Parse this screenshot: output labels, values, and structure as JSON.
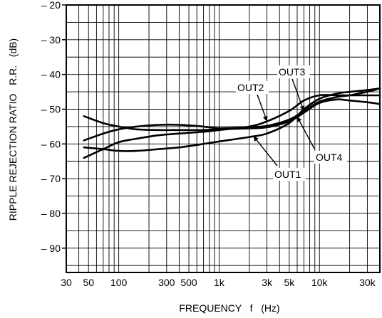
{
  "chart_data": {
    "type": "line",
    "title": "",
    "xlabel": "FREQUENCY   f   (Hz)",
    "ylabel": "RIPPLE REJECTION RATIO   R.R.   (dB)",
    "xscale": "log",
    "xlim": [
      30,
      40000
    ],
    "ylim": [
      -97,
      -20
    ],
    "grid": true,
    "legend": "inline labels",
    "x_ticks": [
      {
        "value": 30,
        "label": "30"
      },
      {
        "value": 50,
        "label": "50"
      },
      {
        "value": 100,
        "label": "100"
      },
      {
        "value": 300,
        "label": "300"
      },
      {
        "value": 500,
        "label": "500"
      },
      {
        "value": 1000,
        "label": "1k"
      },
      {
        "value": 3000,
        "label": "3k"
      },
      {
        "value": 5000,
        "label": "5k"
      },
      {
        "value": 10000,
        "label": "10k"
      },
      {
        "value": 30000,
        "label": "30k"
      }
    ],
    "y_ticks": [
      {
        "value": -20,
        "label": "– 20"
      },
      {
        "value": -30,
        "label": "– 30"
      },
      {
        "value": -40,
        "label": "– 40"
      },
      {
        "value": -50,
        "label": "– 50"
      },
      {
        "value": -60,
        "label": "– 60"
      },
      {
        "value": -70,
        "label": "– 70"
      },
      {
        "value": -80,
        "label": "– 80"
      },
      {
        "value": -90,
        "label": "– 90"
      }
    ],
    "series": [
      {
        "name": "OUT1",
        "x": [
          45,
          70,
          100,
          150,
          250,
          400,
          700,
          1000,
          2000,
          3000,
          5000,
          7000,
          10000,
          15000,
          20000,
          30000,
          40000
        ],
        "y": [
          -61,
          -61.5,
          -62,
          -62,
          -61.5,
          -61,
          -60,
          -59.3,
          -58,
          -57,
          -54,
          -50,
          -47,
          -45.5,
          -45,
          -44.5,
          -44
        ]
      },
      {
        "name": "OUT2",
        "x": [
          45,
          70,
          100,
          150,
          250,
          400,
          700,
          1000,
          2000,
          3000,
          5000,
          7000,
          10000,
          15000,
          20000,
          30000,
          40000
        ],
        "y": [
          -64,
          -61.5,
          -59.5,
          -58.5,
          -57.5,
          -57,
          -56.5,
          -56,
          -55,
          -53.5,
          -50.5,
          -47.5,
          -46,
          -46,
          -46,
          -46,
          -46
        ]
      },
      {
        "name": "OUT3",
        "x": [
          45,
          70,
          100,
          150,
          250,
          400,
          700,
          1000,
          2000,
          3000,
          5000,
          7000,
          10000,
          15000,
          20000,
          30000,
          40000
        ],
        "y": [
          -59,
          -57,
          -55.8,
          -55,
          -54.5,
          -54.5,
          -55,
          -55.5,
          -55.2,
          -54.8,
          -53,
          -50.5,
          -47.8,
          -46.5,
          -46,
          -45,
          -44
        ]
      },
      {
        "name": "OUT4",
        "x": [
          45,
          70,
          100,
          150,
          250,
          400,
          700,
          1000,
          2000,
          3000,
          5000,
          7000,
          10000,
          15000,
          20000,
          30000,
          40000
        ],
        "y": [
          -52,
          -54,
          -55,
          -55.8,
          -56,
          -56,
          -56,
          -55.8,
          -55.5,
          -55.2,
          -53.5,
          -51,
          -48.2,
          -47.2,
          -47.5,
          -48,
          -48.5
        ]
      }
    ],
    "annotations": [
      {
        "text": "OUT2",
        "series": "OUT2"
      },
      {
        "text": "OUT3",
        "series": "OUT3"
      },
      {
        "text": "OUT4",
        "series": "OUT4"
      },
      {
        "text": "OUT1",
        "series": "OUT1"
      }
    ]
  }
}
